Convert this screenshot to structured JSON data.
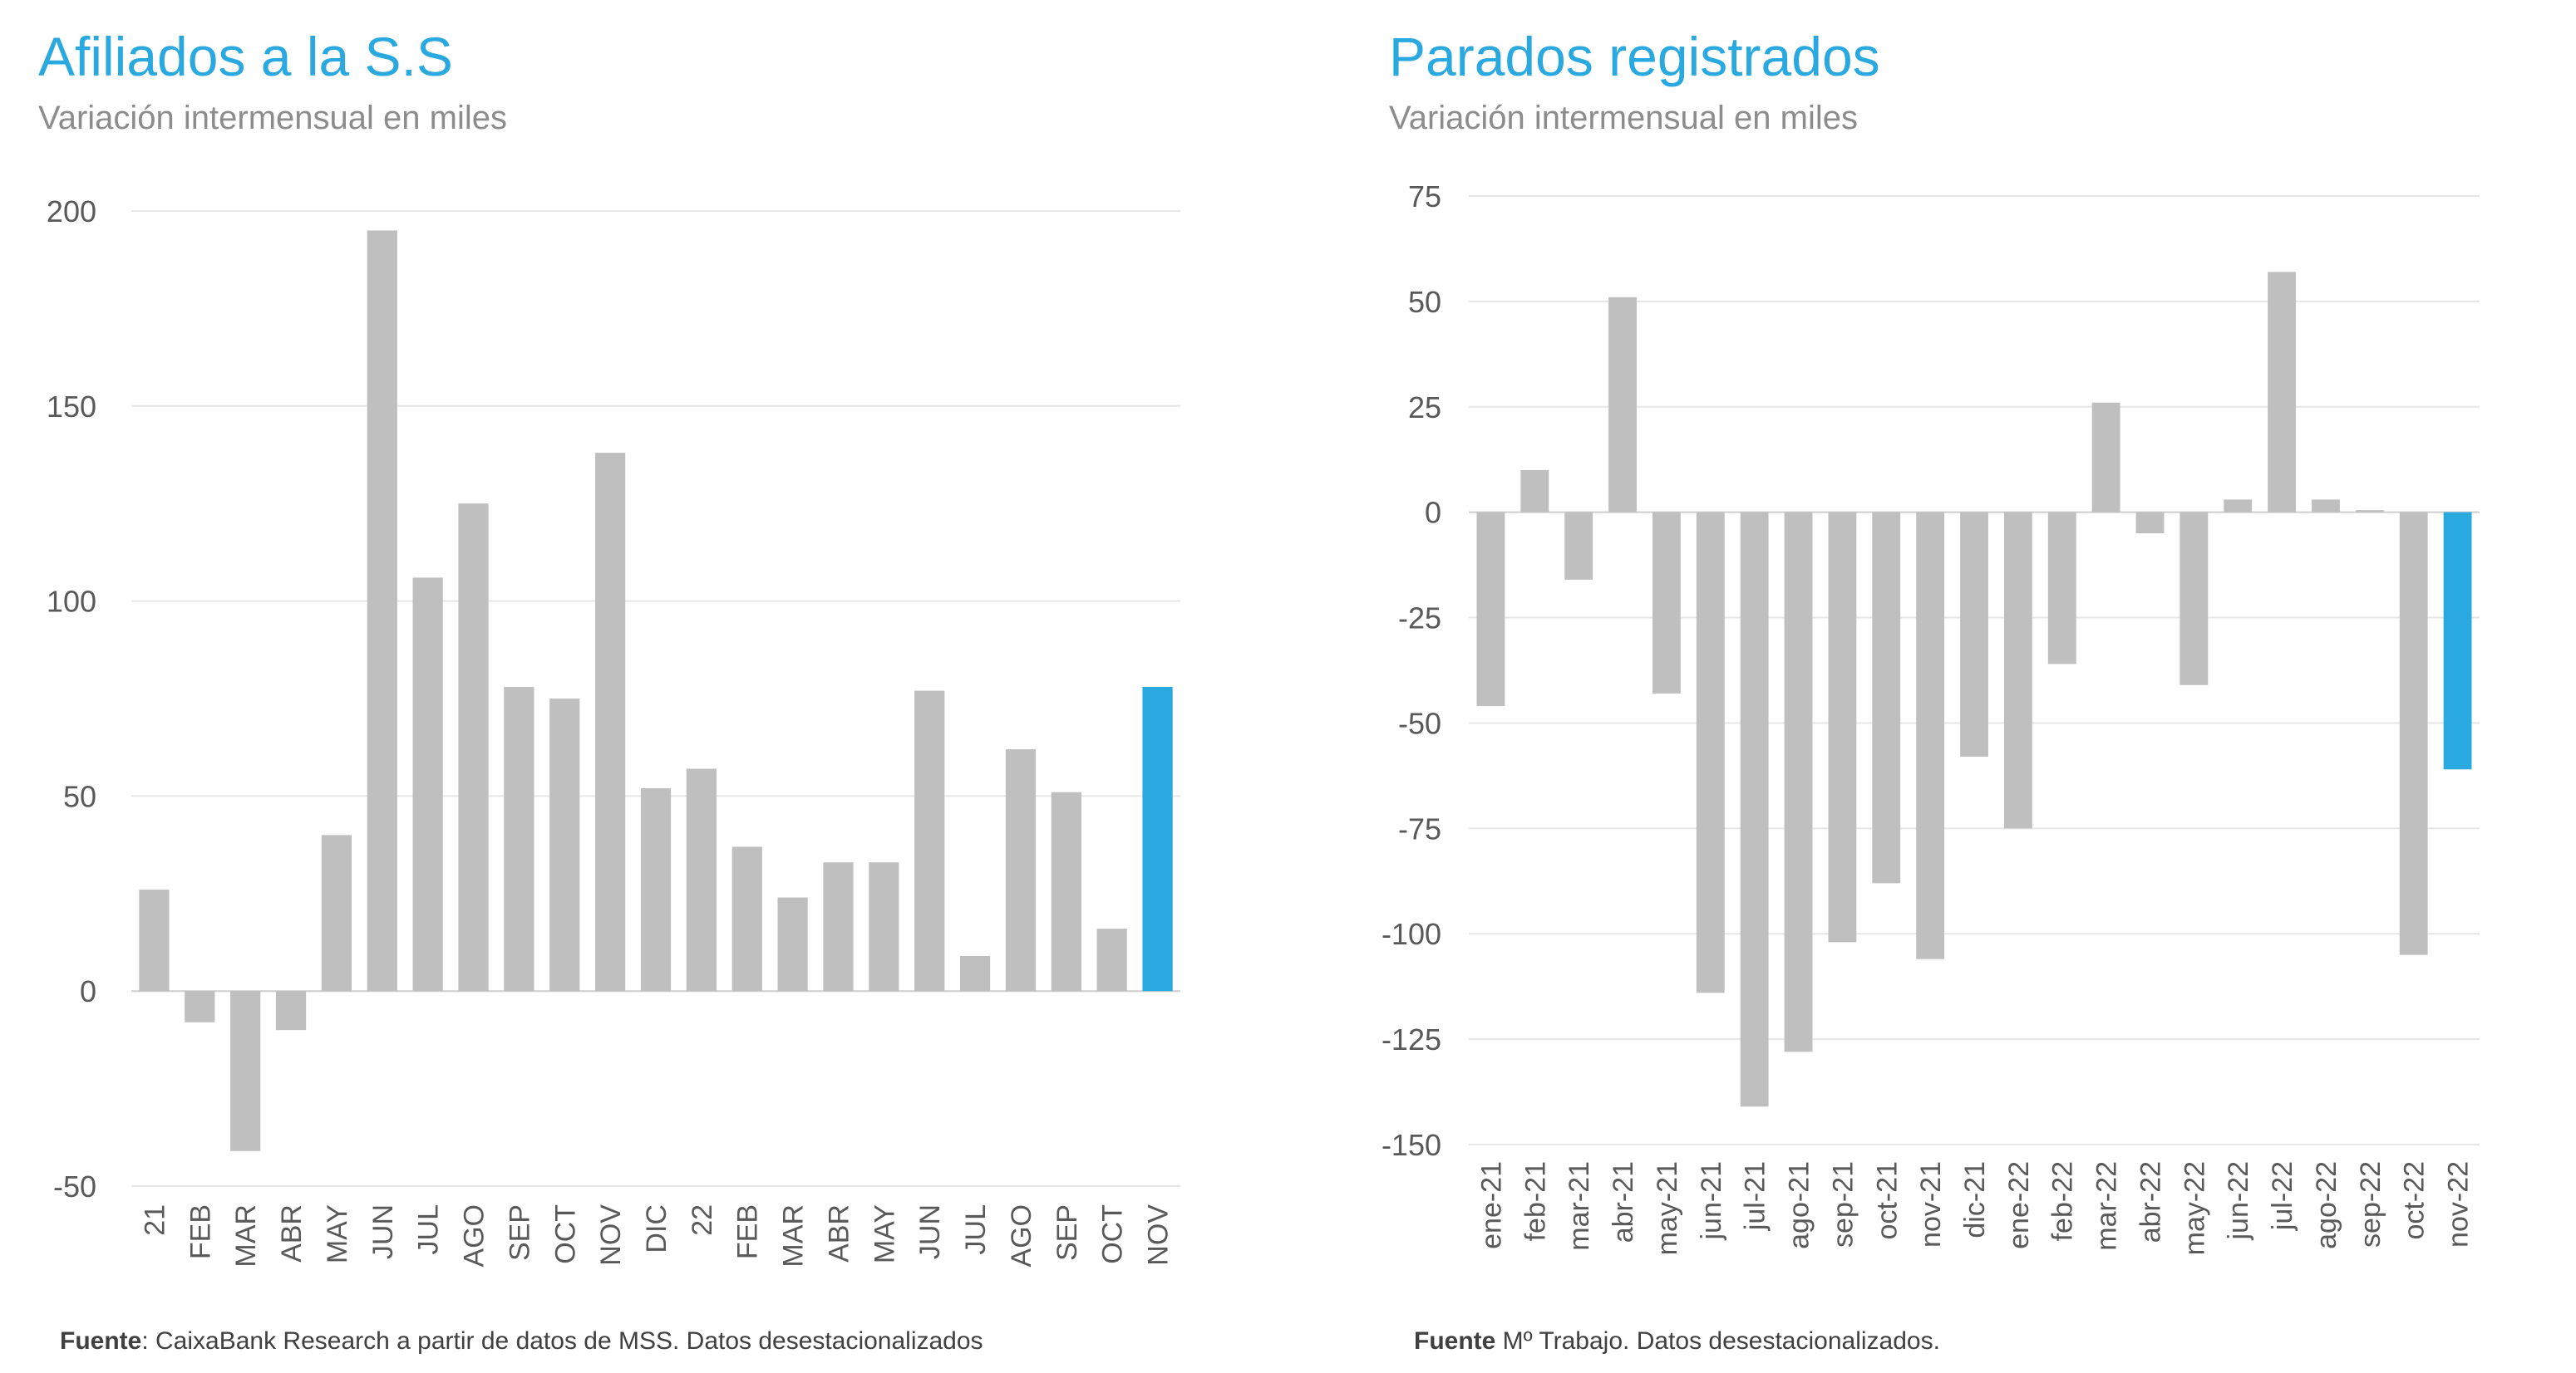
{
  "charts": {
    "left": {
      "title": "Afiliados a la S.S",
      "subtitle": "Variación intermensual en miles",
      "footer_bold": "Fuente",
      "footer_text": ": CaixaBank Research a partir de datos de MSS. Datos desestacionalizados"
    },
    "right": {
      "title": "Parados registrados",
      "subtitle": "Variación intermensual en miles",
      "footer_bold": "Fuente",
      "footer_text": " Mº Trabajo. Datos desestacionalizados."
    }
  },
  "colors": {
    "bar": "#bfbfbf",
    "highlight": "#2aa9e0",
    "grid": "#e6e6e6",
    "axis": "#d0d0d0",
    "tick_text": "#595959"
  },
  "chart_data": [
    {
      "type": "bar",
      "title": "Afiliados a la S.S",
      "subtitle": "Variación intermensual en miles",
      "xlabel": "",
      "ylabel": "",
      "categories": [
        "21",
        "FEB",
        "MAR",
        "ABR",
        "MAY",
        "JUN",
        "JUL",
        "AGO",
        "SEP",
        "OCT",
        "NOV",
        "DIC",
        "22",
        "FEB",
        "MAR",
        "ABR",
        "MAY",
        "JUN",
        "JUL",
        "AGO",
        "SEP",
        "OCT",
        "NOV"
      ],
      "values": [
        26,
        -8,
        -41,
        -10,
        40,
        195,
        106,
        125,
        78,
        75,
        138,
        52,
        57,
        37,
        24,
        33,
        33,
        77,
        9,
        62,
        51,
        16,
        78
      ],
      "highlight_last": true,
      "ylim": [
        -50,
        200
      ],
      "yticks": [
        -50,
        0,
        50,
        100,
        150,
        200
      ],
      "grid": true,
      "legend": "none"
    },
    {
      "type": "bar",
      "title": "Parados registrados",
      "subtitle": "Variación intermensual en miles",
      "xlabel": "",
      "ylabel": "",
      "categories": [
        "ene-21",
        "feb-21",
        "mar-21",
        "abr-21",
        "may-21",
        "jun-21",
        "jul-21",
        "ago-21",
        "sep-21",
        "oct-21",
        "nov-21",
        "dic-21",
        "ene-22",
        "feb-22",
        "mar-22",
        "abr-22",
        "may-22",
        "jun-22",
        "jul-22",
        "ago-22",
        "sep-22",
        "oct-22",
        "nov-22"
      ],
      "values": [
        -46,
        10,
        -16,
        51,
        -43,
        -114,
        -141,
        -128,
        -102,
        -88,
        -106,
        -58,
        -75,
        -36,
        26,
        -5,
        -41,
        3,
        57,
        3,
        0.5,
        -105,
        -61
      ],
      "highlight_last": true,
      "ylim": [
        -150,
        75
      ],
      "yticks": [
        -150,
        -125,
        -100,
        -75,
        -50,
        -25,
        0,
        25,
        50,
        75
      ],
      "grid": true,
      "legend": "none"
    }
  ]
}
